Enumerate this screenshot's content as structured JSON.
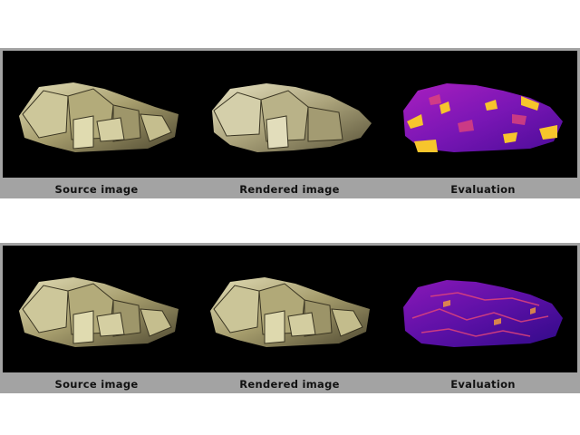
{
  "comparisons": [
    {
      "captions": [
        "Source image",
        "Rendered image",
        "Evaluation"
      ],
      "icons": [
        "pyrite-source-image",
        "pyrite-rendered-image",
        "pyrite-evaluation-heatmap"
      ]
    },
    {
      "captions": [
        "Source image",
        "Rendered image",
        "Evaluation"
      ],
      "icons": [
        "pyrite-source-image",
        "pyrite-rendered-image",
        "pyrite-evaluation-heatmap"
      ]
    }
  ],
  "colors": {
    "background": "#ffffff",
    "frame": "#a3a3a3",
    "strip": "#000000",
    "mineral_light": "#d8d2a8",
    "mineral_dark": "#6b6446",
    "heatmap_low": "#2a0a7a",
    "heatmap_mid": "#b21fc0",
    "heatmap_high": "#f7c52c"
  }
}
